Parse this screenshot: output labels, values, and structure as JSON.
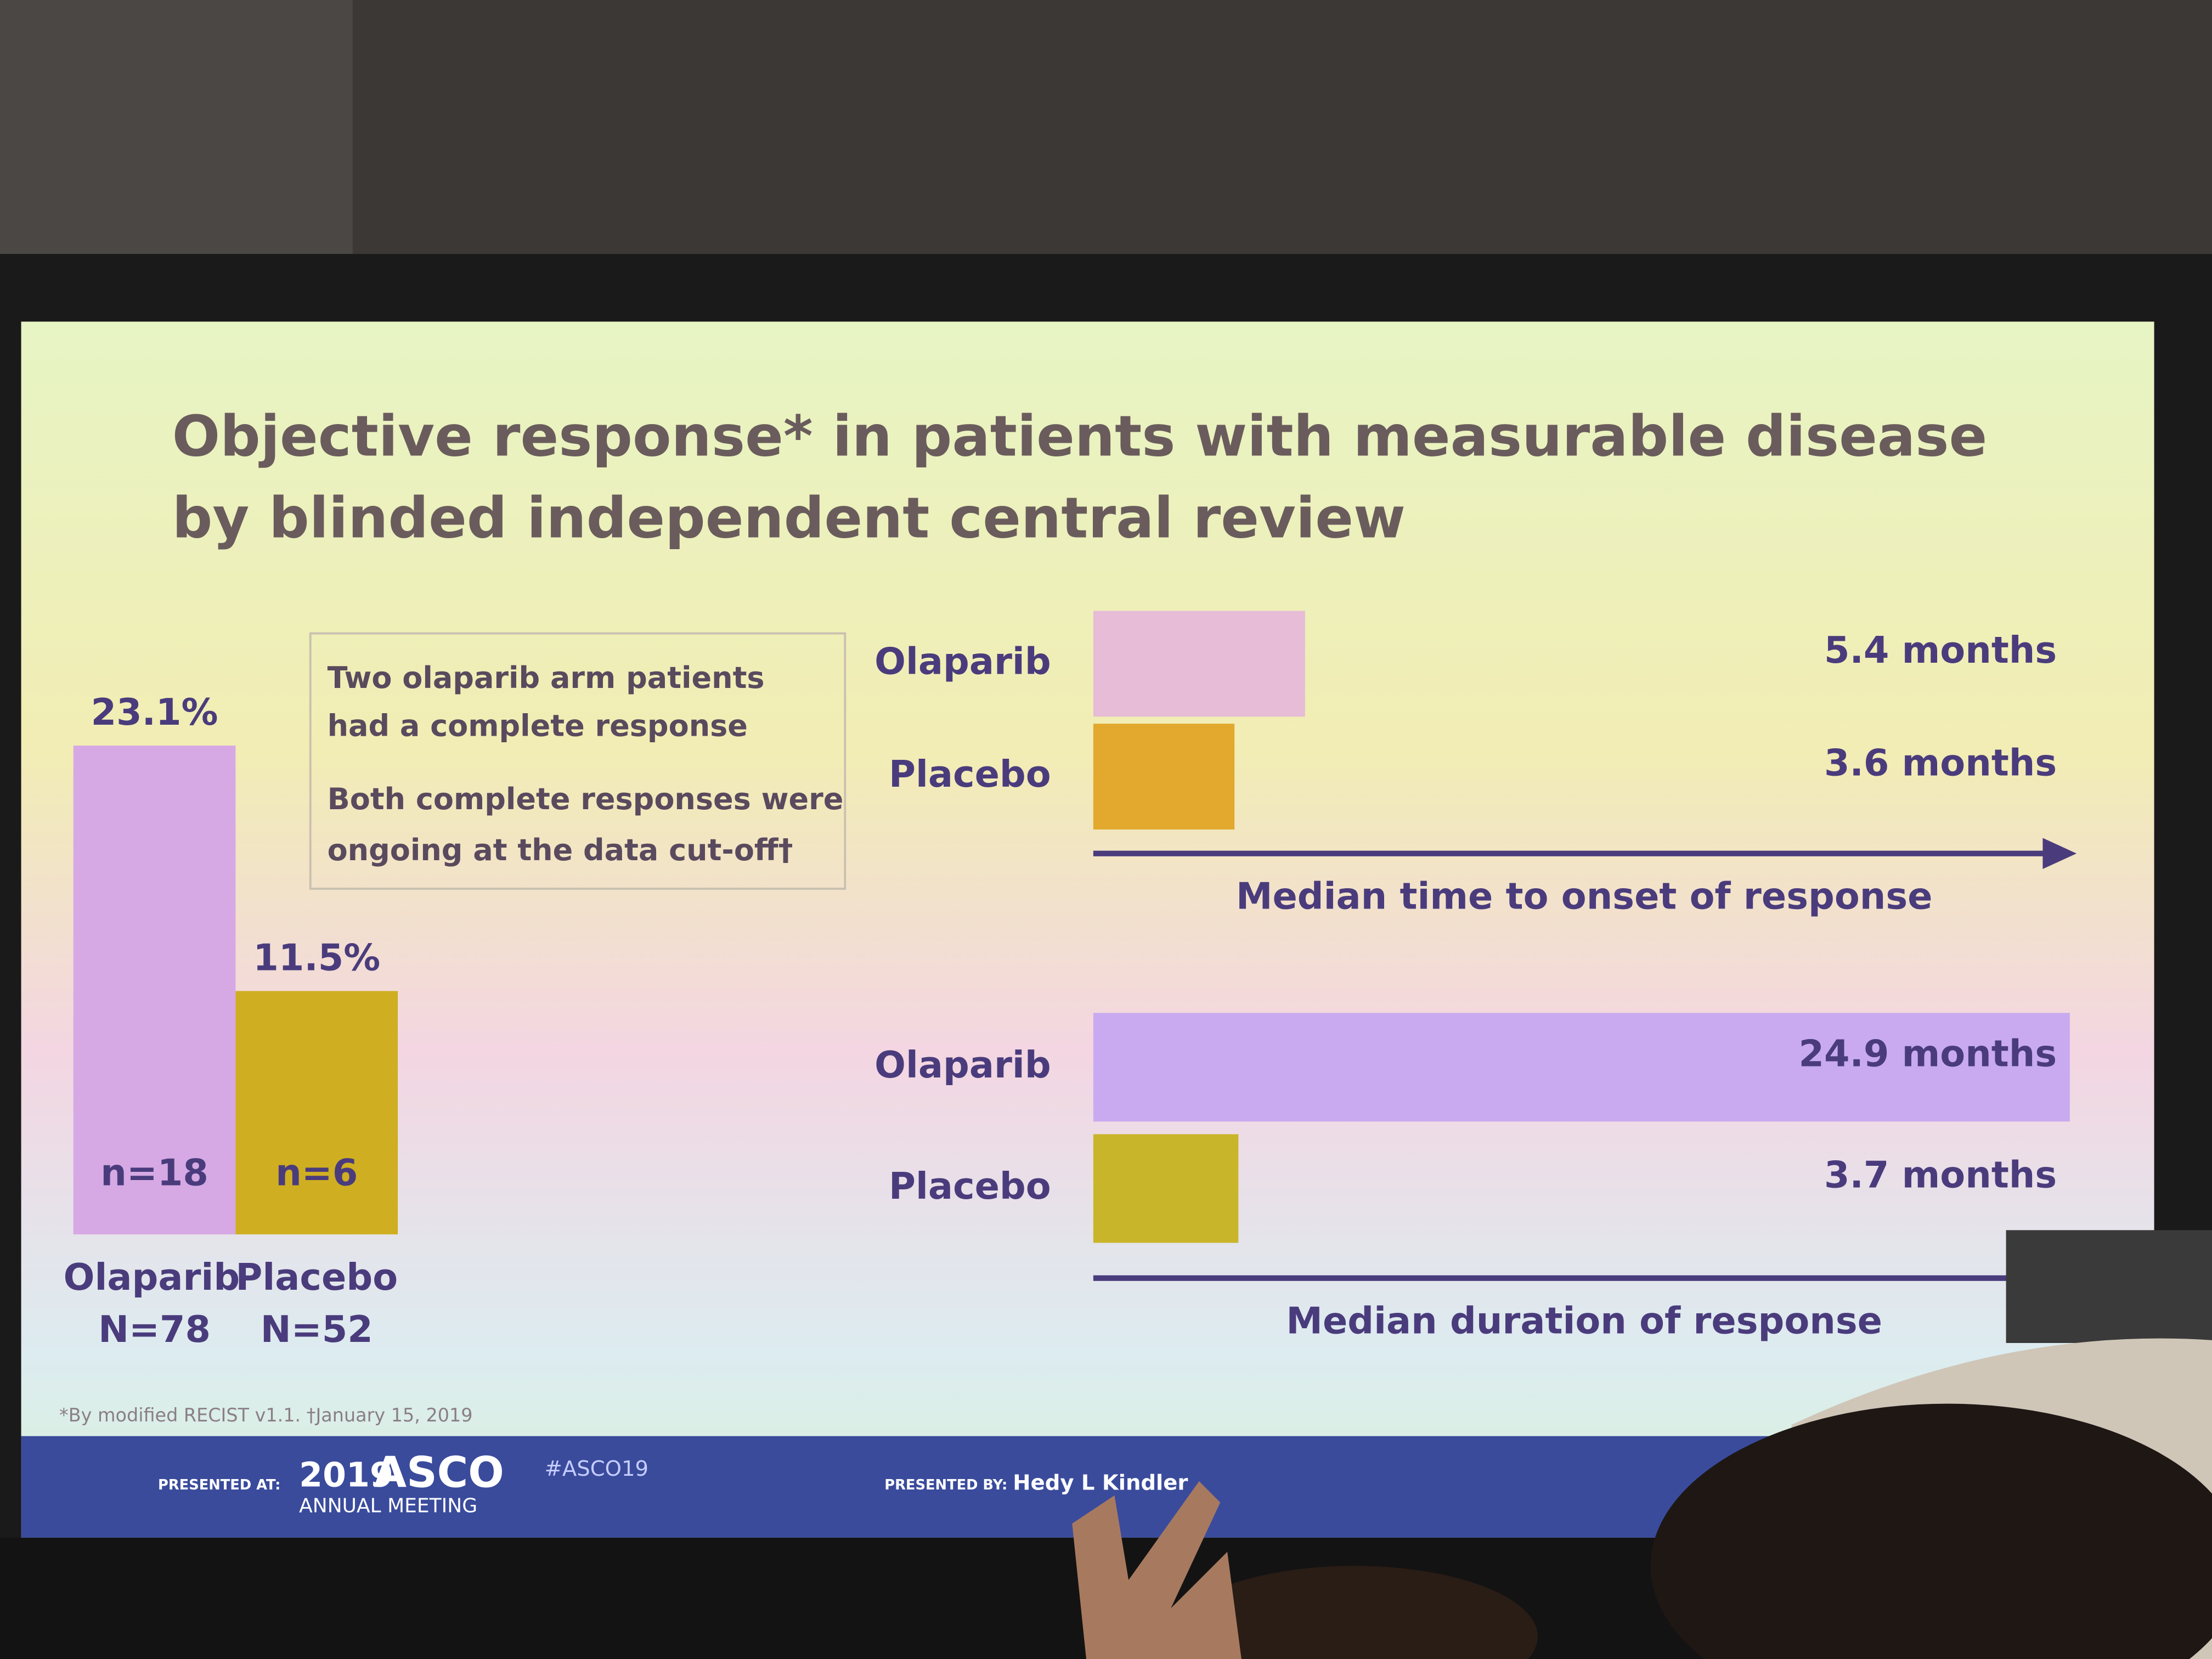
{
  "slide": {
    "title": [
      "Objective response* in patients with measurable disease",
      "by blinded independent central review"
    ],
    "note": [
      "Two olaparib arm patients",
      "had a complete response",
      "Both complete responses were",
      "ongoing at the data cut-off†"
    ],
    "footnote": "*By modified RECIST v1.1. †January 15, 2019",
    "footer": {
      "presented_at": "PRESENTED AT:",
      "meeting_year": "2019",
      "meeting_name": "ASCO",
      "meeting_sub": "ANNUAL MEETING",
      "hashtag": "#ASCO19",
      "presented_by": "PRESENTED BY:",
      "presenter": "Hedy L Kindler"
    }
  },
  "chart_data": [
    {
      "type": "bar",
      "categories": [
        "Olaparib",
        "Placebo"
      ],
      "values": [
        23.1,
        11.5
      ],
      "value_labels": [
        "23.1%",
        "11.5%"
      ],
      "n_labels": [
        "n=18",
        "n=6"
      ],
      "group_sizes": [
        "N=78",
        "N=52"
      ],
      "colors": [
        "#d6a9e4",
        "#cfae22"
      ]
    },
    {
      "type": "barh",
      "xlabel": "Median time to onset of response",
      "categories": [
        "Olaparib",
        "Placebo"
      ],
      "values": [
        5.4,
        3.6
      ],
      "value_labels": [
        "5.4 months",
        "3.6 months"
      ],
      "colors": [
        "#e6bcd6",
        "#e2a92e"
      ]
    },
    {
      "type": "barh",
      "xlabel": "Median duration of response",
      "categories": [
        "Olaparib",
        "Placebo"
      ],
      "values": [
        24.9,
        3.7
      ],
      "value_labels": [
        "24.9 months",
        "3.7 months"
      ],
      "colors": [
        "#c9aaf0",
        "#c9b52a"
      ]
    }
  ]
}
